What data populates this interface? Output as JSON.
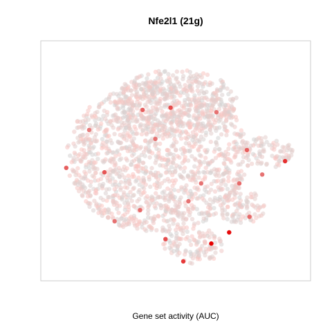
{
  "chart_data": {
    "type": "scatter",
    "title": "Nfe2l1 (21g)",
    "xlabel": "Gene set activity (AUC)",
    "ylabel": "",
    "axes_visible": false,
    "grid": false,
    "legend": "none",
    "color_scale": {
      "low": "#d3d3d3",
      "mid": "#fcc4c0",
      "high": "#e60000"
    },
    "background_points": "dense cloud of several thousand cells colored light grey to light pink (t-SNE embedding)",
    "clusters": [
      {
        "name": "main-body",
        "cx": 0.43,
        "cy": 0.52,
        "rx": 0.36,
        "ry": 0.34
      },
      {
        "name": "top-lobe",
        "cx": 0.5,
        "cy": 0.77,
        "rx": 0.24,
        "ry": 0.14
      },
      {
        "name": "right-arm",
        "cx": 0.86,
        "cy": 0.54,
        "rx": 0.1,
        "ry": 0.07
      },
      {
        "name": "right-lower",
        "cx": 0.76,
        "cy": 0.29,
        "rx": 0.09,
        "ry": 0.08
      },
      {
        "name": "bottom-lobe",
        "cx": 0.57,
        "cy": 0.12,
        "rx": 0.12,
        "ry": 0.08
      }
    ],
    "highlight_points": [
      {
        "x": 0.64,
        "y": 0.13,
        "v": 1.0
      },
      {
        "x": 0.71,
        "y": 0.18,
        "v": 0.95
      },
      {
        "x": 0.53,
        "y": 0.05,
        "v": 0.7
      },
      {
        "x": 0.46,
        "y": 0.15,
        "v": 0.6
      },
      {
        "x": 0.93,
        "y": 0.5,
        "v": 0.75
      },
      {
        "x": 0.48,
        "y": 0.74,
        "v": 0.6
      },
      {
        "x": 0.37,
        "y": 0.73,
        "v": 0.5
      },
      {
        "x": 0.22,
        "y": 0.45,
        "v": 0.55
      },
      {
        "x": 0.07,
        "y": 0.47,
        "v": 0.5
      },
      {
        "x": 0.78,
        "y": 0.55,
        "v": 0.5
      },
      {
        "x": 0.79,
        "y": 0.25,
        "v": 0.45
      },
      {
        "x": 0.36,
        "y": 0.28,
        "v": 0.45
      },
      {
        "x": 0.26,
        "y": 0.23,
        "v": 0.4
      },
      {
        "x": 0.6,
        "y": 0.4,
        "v": 0.4
      },
      {
        "x": 0.75,
        "y": 0.4,
        "v": 0.45
      },
      {
        "x": 0.84,
        "y": 0.44,
        "v": 0.4
      },
      {
        "x": 0.42,
        "y": 0.6,
        "v": 0.4
      },
      {
        "x": 0.66,
        "y": 0.72,
        "v": 0.4
      },
      {
        "x": 0.16,
        "y": 0.64,
        "v": 0.35
      },
      {
        "x": 0.55,
        "y": 0.32,
        "v": 0.4
      }
    ]
  }
}
